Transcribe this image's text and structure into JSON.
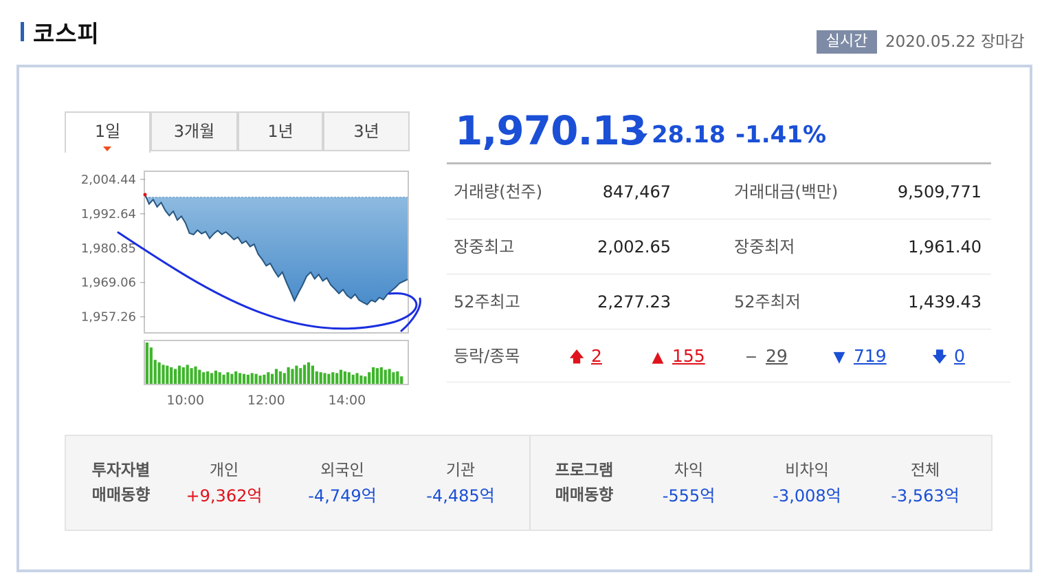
{
  "header": {
    "title": "코스피",
    "realtime_badge": "실시간",
    "date": "2020.05.22 장마감"
  },
  "tabs": [
    {
      "label": "1일",
      "active": true
    },
    {
      "label": "3개월",
      "active": false
    },
    {
      "label": "1년",
      "active": false
    },
    {
      "label": "3년",
      "active": false
    }
  ],
  "index": {
    "value": "1,970.13",
    "direction": "down",
    "change": "28.18",
    "change_rate": "-1.41%"
  },
  "stats": {
    "rows": [
      {
        "label1": "거래량(천주)",
        "value1": "847,467",
        "label2": "거래대금(백만)",
        "value2": "9,509,771"
      },
      {
        "label1": "장중최고",
        "value1": "2,002.65",
        "label2": "장중최저",
        "value2": "1,961.40"
      },
      {
        "label1": "52주최고",
        "value1": "2,277.23",
        "label2": "52주최저",
        "value2": "1,439.43"
      }
    ],
    "updown": {
      "label": "등락/종목",
      "upper_limit": "2",
      "up": "155",
      "unchanged": "29",
      "down": "719",
      "lower_limit": "0"
    }
  },
  "investors": {
    "title_line1": "투자자별",
    "title_line2": "매매동향",
    "columns": [
      {
        "name": "개인",
        "amount": "+9,362억",
        "sign": "up"
      },
      {
        "name": "외국인",
        "amount": "-4,749억",
        "sign": "down"
      },
      {
        "name": "기관",
        "amount": "-4,485억",
        "sign": "down"
      }
    ]
  },
  "program": {
    "title_line1": "프로그램",
    "title_line2": "매매동향",
    "columns": [
      {
        "name": "차익",
        "amount": "-555억",
        "sign": "down"
      },
      {
        "name": "비차익",
        "amount": "-3,008억",
        "sign": "down"
      },
      {
        "name": "전체",
        "amount": "-3,563억",
        "sign": "down"
      }
    ]
  },
  "colors": {
    "up": "#e0121b",
    "down": "#1a4fd6",
    "area_fill_top": "#8fbbe0",
    "area_fill_bottom": "#4a8ccb",
    "volume": "#3fb52c",
    "annotation": "#1a2ee0"
  },
  "chart_data": {
    "type": "area",
    "title": "",
    "xlabel": "",
    "ylabel": "",
    "y_ticks": [
      "2,004.44",
      "1,992.64",
      "1,980.85",
      "1,969.06",
      "1,957.26"
    ],
    "y_tick_values": [
      2004.44,
      1992.64,
      1980.85,
      1969.06,
      1957.26
    ],
    "x_ticks": [
      "10:00",
      "12:00",
      "14:00"
    ],
    "x_tick_values": [
      10,
      12,
      14
    ],
    "xlim": [
      9,
      15.5
    ],
    "ylim": [
      1952,
      2007
    ],
    "baseline": 1998.31,
    "series": [
      {
        "x": [
          9.0,
          9.1,
          9.2,
          9.3,
          9.4,
          9.5,
          9.6,
          9.7,
          9.8,
          9.9,
          10.0,
          10.1,
          10.2,
          10.3,
          10.4,
          10.5,
          10.6,
          10.7,
          10.8,
          10.9,
          11.0,
          11.1,
          11.2,
          11.3,
          11.4,
          11.5,
          11.6,
          11.7,
          11.8,
          11.9,
          12.0,
          12.1,
          12.2,
          12.3,
          12.4,
          12.5,
          12.6,
          12.7,
          12.8,
          12.9,
          13.0,
          13.1,
          13.2,
          13.3,
          13.4,
          13.5,
          13.6,
          13.7,
          13.8,
          13.9,
          14.0,
          14.1,
          14.2,
          14.3,
          14.4,
          14.5,
          14.6,
          14.7,
          14.8,
          14.9,
          15.0,
          15.1,
          15.2,
          15.3,
          15.5
        ],
        "values": [
          1999.2,
          1996.0,
          1997.5,
          1995.0,
          1996.5,
          1993.8,
          1992.0,
          1993.5,
          1990.5,
          1991.8,
          1989.5,
          1986.0,
          1985.5,
          1987.0,
          1985.8,
          1986.5,
          1984.2,
          1985.8,
          1986.9,
          1985.6,
          1986.4,
          1985.2,
          1983.8,
          1984.6,
          1982.5,
          1983.3,
          1981.4,
          1982.2,
          1978.8,
          1977.0,
          1974.8,
          1975.6,
          1973.1,
          1971.0,
          1972.6,
          1969.1,
          1966.0,
          1962.8,
          1965.6,
          1968.2,
          1971.2,
          1972.6,
          1970.3,
          1971.8,
          1969.6,
          1970.6,
          1968.2,
          1966.8,
          1965.3,
          1966.6,
          1964.6,
          1963.6,
          1965.0,
          1963.0,
          1962.2,
          1961.5,
          1963.0,
          1962.4,
          1963.9,
          1963.2,
          1965.0,
          1966.2,
          1967.4,
          1968.8,
          1970.13
        ]
      }
    ],
    "volume": {
      "x": [
        9.05,
        9.15,
        9.25,
        9.35,
        9.45,
        9.55,
        9.65,
        9.75,
        9.85,
        9.95,
        10.05,
        10.15,
        10.25,
        10.35,
        10.45,
        10.55,
        10.65,
        10.75,
        10.85,
        10.95,
        11.05,
        11.15,
        11.25,
        11.35,
        11.45,
        11.55,
        11.65,
        11.75,
        11.85,
        11.95,
        12.05,
        12.15,
        12.25,
        12.35,
        12.45,
        12.55,
        12.65,
        12.75,
        12.85,
        12.95,
        13.05,
        13.15,
        13.25,
        13.35,
        13.45,
        13.55,
        13.65,
        13.75,
        13.85,
        13.95,
        14.05,
        14.15,
        14.25,
        14.35,
        14.45,
        14.55,
        14.65,
        14.75,
        14.85,
        14.95,
        15.05,
        15.15,
        15.25,
        15.35
      ],
      "values": [
        100,
        88,
        58,
        52,
        46,
        44,
        40,
        36,
        44,
        40,
        46,
        38,
        42,
        34,
        28,
        30,
        26,
        32,
        28,
        22,
        28,
        24,
        30,
        26,
        24,
        22,
        26,
        24,
        20,
        22,
        28,
        24,
        36,
        30,
        26,
        40,
        36,
        44,
        38,
        46,
        52,
        44,
        30,
        28,
        26,
        24,
        28,
        26,
        34,
        30,
        28,
        22,
        26,
        20,
        18,
        28,
        40,
        38,
        40,
        34,
        36,
        28,
        30,
        18
      ]
    },
    "grid": false,
    "legend": "none"
  }
}
